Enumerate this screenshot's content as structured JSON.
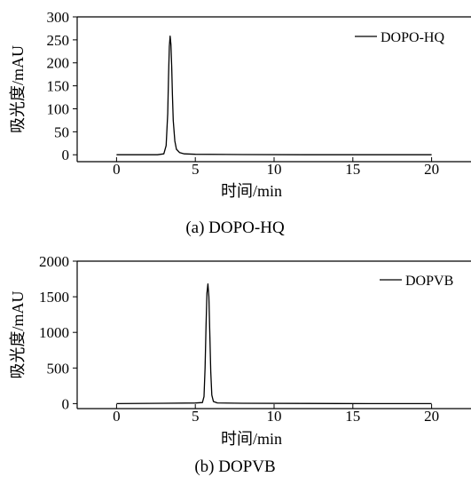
{
  "chart_data": [
    {
      "type": "line",
      "caption": "(a) DOPO-HQ",
      "xlabel": "时间/min",
      "ylabel": "吸光度/mAU",
      "xlim": [
        -2.5,
        22.5
      ],
      "ylim": [
        -15,
        300
      ],
      "xticks": [
        0,
        5,
        10,
        15,
        20
      ],
      "xtick_labels": [
        "0",
        "5",
        "10",
        "15",
        "20"
      ],
      "yticks": [
        0,
        50,
        100,
        150,
        200,
        250,
        300
      ],
      "ytick_labels": [
        "0",
        "50",
        "100",
        "150",
        "200",
        "250",
        "300"
      ],
      "grid": false,
      "legend_position": "top-right",
      "series": [
        {
          "name": "DOPO-HQ",
          "color": "#000000",
          "x": [
            0,
            2.0,
            2.6,
            3.0,
            3.15,
            3.25,
            3.3,
            3.35,
            3.4,
            3.45,
            3.5,
            3.55,
            3.6,
            3.7,
            3.8,
            4.0,
            4.3,
            5.0,
            8.0,
            12.0,
            16.0,
            20.0
          ],
          "y": [
            0,
            0,
            0,
            2,
            20,
            90,
            170,
            235,
            258,
            240,
            190,
            130,
            75,
            30,
            12,
            5,
            2,
            1,
            0.5,
            0,
            0,
            0
          ]
        }
      ]
    },
    {
      "type": "line",
      "caption": "(b) DOPVB",
      "xlabel": "时间/min",
      "ylabel": "吸光度/mAU",
      "xlim": [
        -2.5,
        22.5
      ],
      "ylim": [
        -70,
        2000
      ],
      "xticks": [
        0,
        5,
        10,
        15,
        20
      ],
      "xtick_labels": [
        "0",
        "5",
        "10",
        "15",
        "20"
      ],
      "yticks": [
        0,
        500,
        1000,
        1500,
        2000
      ],
      "ytick_labels": [
        "0",
        "500",
        "1000",
        "1500",
        "2000"
      ],
      "grid": false,
      "legend_position": "top-right",
      "series": [
        {
          "name": "DOPVB",
          "color": "#000000",
          "x": [
            0,
            3.0,
            5.0,
            5.45,
            5.55,
            5.62,
            5.68,
            5.74,
            5.8,
            5.86,
            5.92,
            5.98,
            6.05,
            6.15,
            6.4,
            8.0,
            12.0,
            16.0,
            20.0
          ],
          "y": [
            0,
            5,
            8,
            15,
            100,
            500,
            1100,
            1550,
            1680,
            1500,
            1000,
            450,
            120,
            30,
            10,
            5,
            2,
            0,
            0
          ]
        }
      ]
    }
  ]
}
